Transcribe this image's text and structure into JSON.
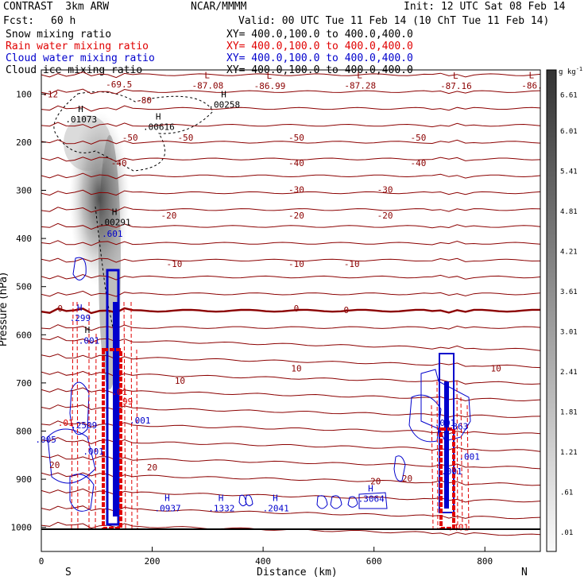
{
  "header": {
    "title": "CONTRAST  3km ARW",
    "org": "NCAR/MMMM",
    "init": "Init: 12 UTC Sat 08 Feb 14",
    "fcst_label": "Fcst:",
    "fcst_value": "60 h",
    "valid": "Valid: 00 UTC Tue 11 Feb 14 (10 ChT Tue 11 Feb 14)"
  },
  "fields": [
    {
      "name": "Snow mixing ratio",
      "xy": "XY= 400.0,100.0 to 400.0,400.0",
      "color": "#000000"
    },
    {
      "name": "Rain water mixing ratio",
      "xy": "XY= 400.0,100.0 to 400.0,400.0",
      "color": "#e00000"
    },
    {
      "name": "Cloud water mixing ratio",
      "xy": "XY= 400.0,100.0 to 400.0,400.0",
      "color": "#0000cc"
    },
    {
      "name": "Cloud ice mixing ratio",
      "xy": "XY= 400.0,100.0 to 400.0,400.0",
      "color": "#000000"
    }
  ],
  "colors": {
    "temperature": "#8b0000",
    "rain": "#e00000",
    "cloud_water": "#0000cc",
    "snow": "#000000"
  },
  "chart_data": {
    "type": "contour-cross-section",
    "xlabel": "Distance (km)",
    "ylabel": "Pressure (hPa)",
    "xlim": [
      0,
      900
    ],
    "ylim": [
      1050,
      50
    ],
    "xticks": [
      0,
      200,
      400,
      600,
      800
    ],
    "yticks": [
      100,
      200,
      300,
      400,
      500,
      600,
      700,
      800,
      900,
      1000
    ],
    "end_labels": {
      "left": "S",
      "right": "N"
    },
    "colorbar": {
      "unit": "g kg",
      "unit_exp": "-1",
      "labels": [
        "6.61",
        "6.01",
        "5.41",
        "4.81",
        "4.21",
        "3.61",
        "3.01",
        "2.41",
        "1.81",
        "1.21",
        ".61",
        ".01"
      ]
    },
    "temperature_contours": [
      {
        "level": "-50",
        "labels": [
          {
            "x": 160,
            "p": 190
          },
          {
            "x": 260,
            "p": 190
          },
          {
            "x": 460,
            "p": 190
          },
          {
            "x": 680,
            "p": 190
          }
        ]
      },
      {
        "level": "-40",
        "labels": [
          {
            "x": 140,
            "p": 243
          },
          {
            "x": 460,
            "p": 243
          },
          {
            "x": 680,
            "p": 243
          }
        ]
      },
      {
        "level": "-30",
        "labels": [
          {
            "x": 460,
            "p": 298
          },
          {
            "x": 620,
            "p": 298
          }
        ]
      },
      {
        "level": "-20",
        "labels": [
          {
            "x": 230,
            "p": 352
          },
          {
            "x": 460,
            "p": 352
          },
          {
            "x": 620,
            "p": 352
          }
        ]
      },
      {
        "level": "-10",
        "labels": [
          {
            "x": 240,
            "p": 453
          },
          {
            "x": 460,
            "p": 453
          },
          {
            "x": 560,
            "p": 453
          }
        ]
      },
      {
        "level": "0",
        "labels": [
          {
            "x": 34,
            "p": 545
          },
          {
            "x": 460,
            "p": 545
          },
          {
            "x": 550,
            "p": 548
          }
        ]
      },
      {
        "level": "10",
        "labels": [
          {
            "x": 460,
            "p": 670
          },
          {
            "x": 820,
            "p": 670
          },
          {
            "x": 250,
            "p": 695
          }
        ]
      },
      {
        "level": "20",
        "labels": [
          {
            "x": 24,
            "p": 870
          },
          {
            "x": 200,
            "p": 875
          },
          {
            "x": 660,
            "p": 898
          },
          {
            "x": 603,
            "p": 904
          }
        ]
      }
    ],
    "extrema": [
      {
        "type": "L",
        "value": "-87.08",
        "x": 300,
        "p": 82
      },
      {
        "type": "L",
        "value": "-86.99",
        "x": 412,
        "p": 83
      },
      {
        "type": "L",
        "value": "-87.28",
        "x": 575,
        "p": 82
      },
      {
        "type": "L",
        "value": "-87.16",
        "x": 748,
        "p": 83
      },
      {
        "type": "L",
        "value": "-86.",
        "x": 885,
        "p": 82
      },
      {
        "type": "",
        "value": "-69.5",
        "x": 140,
        "p": 80
      },
      {
        "type": "",
        "value": "-80",
        "x": 185,
        "p": 113
      },
      {
        "type": "",
        "value": "-12",
        "x": 16,
        "p": 100
      },
      {
        "type": "H",
        "value": ".00258",
        "x": 330,
        "p": 122
      },
      {
        "type": "H",
        "value": ".01073",
        "x": 72,
        "p": 152
      },
      {
        "type": "H",
        "value": ".00616",
        "x": 212,
        "p": 168
      },
      {
        "type": "H",
        "value": ".00291",
        "x": 133,
        "p": 366
      },
      {
        "type": "",
        "value": ".601",
        "x": 128,
        "p": 390
      },
      {
        "type": "H",
        "value": ".299",
        "x": 70,
        "p": 565
      },
      {
        "type": "",
        "value": "H",
        "x": 83,
        "p": 590
      },
      {
        "type": "",
        "value": ".001",
        "x": 86,
        "p": 612
      },
      {
        "type": "",
        "value": ".01",
        "x": 141,
        "p": 718
      },
      {
        "type": "",
        "value": ".99",
        "x": 151,
        "p": 738
      },
      {
        "type": "",
        "value": ".01",
        "x": 44,
        "p": 783
      },
      {
        "type": "",
        "value": ".2509",
        "x": 77,
        "p": 788
      },
      {
        "type": "",
        "value": ".001",
        "x": 178,
        "p": 778
      },
      {
        "type": "",
        "value": ".005",
        "x": 8,
        "p": 817
      },
      {
        "type": "",
        "value": ".001",
        "x": 94,
        "p": 842
      },
      {
        "type": "H",
        "value": ".0937",
        "x": 228,
        "p": 960
      },
      {
        "type": "H",
        "value": ".1332",
        "x": 325,
        "p": 960
      },
      {
        "type": "H",
        "value": ".2041",
        "x": 423,
        "p": 960
      },
      {
        "type": "H",
        "value": ".3064",
        "x": 595,
        "p": 940
      },
      {
        "type": "",
        "value": ".001",
        "x": 728,
        "p": 783
      },
      {
        "type": "",
        "value": ".363",
        "x": 751,
        "p": 790
      },
      {
        "type": "",
        "value": ".001",
        "x": 772,
        "p": 853
      },
      {
        "type": "",
        "value": ".001",
        "x": 740,
        "p": 883
      },
      {
        "type": "",
        "value": ".401",
        "x": 752,
        "p": 1000
      }
    ]
  }
}
